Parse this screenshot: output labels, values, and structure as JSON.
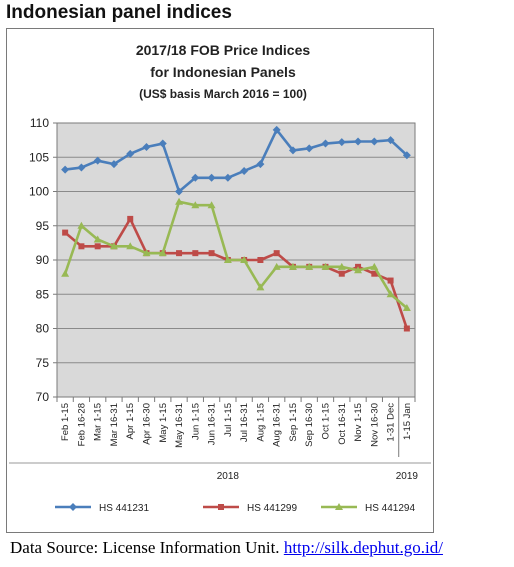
{
  "page": {
    "heading": "Indonesian panel indices",
    "footer_label": "Data Source: License Information Unit.",
    "footer_link": "http://silk.dephut.go.id/"
  },
  "chart_data": {
    "type": "line",
    "title": [
      "2017/18 FOB Price Indices",
      "for Indonesian Panels",
      "(US$ basis March 2016 = 100)"
    ],
    "xlabel": "",
    "ylabel": "",
    "ylim": [
      70,
      110
    ],
    "yticks": [
      70,
      75,
      80,
      85,
      90,
      95,
      100,
      105,
      110
    ],
    "grid": true,
    "legend_position": "bottom",
    "categories": [
      "Feb 1-15",
      "Feb 16-28",
      "Mar 1-15",
      "Mar 16-31",
      "Apr 1-15",
      "Apr 16-30",
      "May 1-15",
      "May 16-31",
      "Jun 1-15",
      "Jun 16-31",
      "Jul 1-15",
      "Jul 16-31",
      "Aug 1-15",
      "Aug 16-31",
      "Sep 1-15",
      "Sep 16-30",
      "Oct 1-15",
      "Oct 16-31",
      "Nov 1-15",
      "Nov 16-30",
      "1-31 Dec",
      "1-15 Jan"
    ],
    "year_labels": [
      "2018",
      "2019"
    ],
    "series": [
      {
        "name": "HS 441231",
        "color": "#4a7ebb",
        "marker": "diamond",
        "values": [
          103.2,
          103.5,
          104.5,
          104,
          105.5,
          106.5,
          107,
          100,
          102,
          102,
          102,
          103,
          104,
          109,
          106,
          106.3,
          107,
          107.2,
          107.3,
          107.3,
          107.5,
          105.3
        ]
      },
      {
        "name": "HS 441299",
        "color": "#be4b48",
        "marker": "square",
        "values": [
          94,
          92,
          92,
          92,
          96,
          91,
          91,
          91,
          91,
          91,
          90,
          90,
          90,
          91,
          89,
          89,
          89,
          88,
          89,
          88,
          87,
          80
        ]
      },
      {
        "name": "HS 441294",
        "color": "#98b954",
        "marker": "triangle",
        "values": [
          88,
          95,
          93,
          92,
          92,
          91,
          91,
          98.5,
          98,
          98,
          90,
          90,
          86,
          89,
          89,
          89,
          89,
          89,
          88.5,
          89,
          85,
          83
        ]
      }
    ]
  }
}
